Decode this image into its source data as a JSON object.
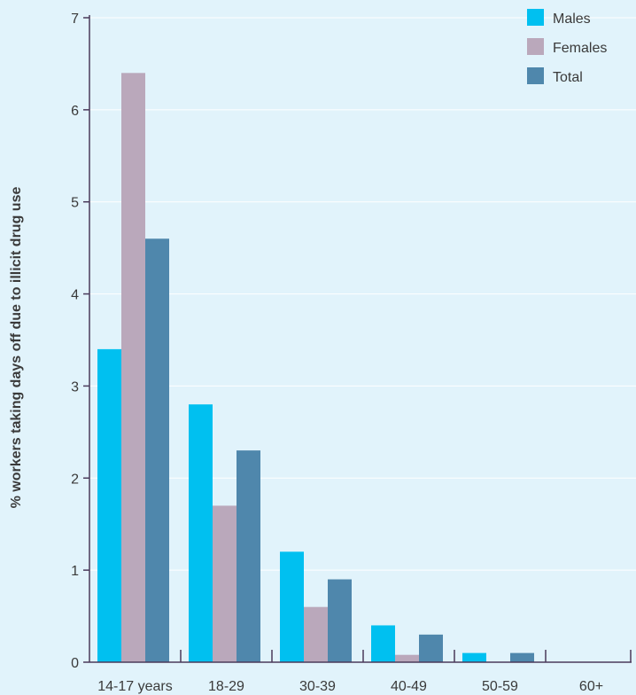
{
  "chart_data": {
    "type": "bar",
    "title": "",
    "xlabel": "",
    "ylabel": "% workers taking days off due to illicit drug use",
    "categories": [
      "14-17 years",
      "18-29",
      "30-39",
      "40-49",
      "50-59",
      "60+"
    ],
    "series": [
      {
        "name": "Males",
        "color": "#00c0f0",
        "values": [
          3.4,
          2.8,
          1.2,
          0.4,
          0.1,
          0
        ]
      },
      {
        "name": "Females",
        "color": "#baa8bb",
        "values": [
          6.4,
          1.7,
          0.6,
          0.08,
          0,
          0
        ]
      },
      {
        "name": "Total",
        "color": "#4f87ac",
        "values": [
          4.6,
          2.3,
          0.9,
          0.3,
          0.1,
          0
        ]
      }
    ],
    "ylim": [
      0,
      7
    ],
    "yticks": [
      "0",
      "1",
      "2",
      "3",
      "4",
      "5",
      "6",
      "7"
    ],
    "grid": true,
    "legend_position": "top-right"
  },
  "colors": {
    "background": "#e1f3fb",
    "axis": "#4a3a5a",
    "grid": "#ffffff"
  }
}
